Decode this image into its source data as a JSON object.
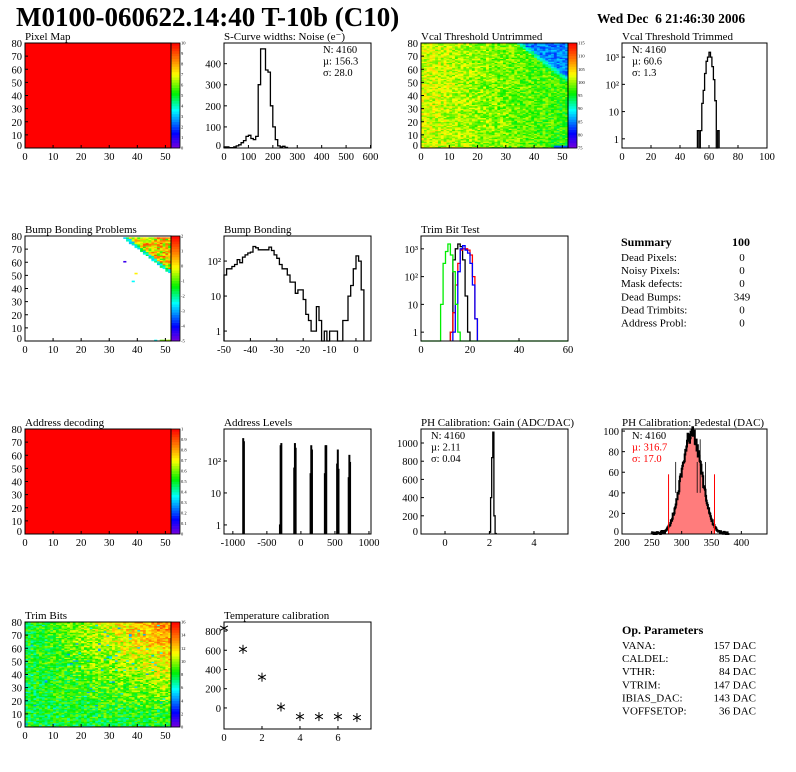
{
  "header": {
    "title": "M0100-060622.14:40 T-10b (C10)",
    "date": "Wed Dec  6 21:46:30 2006"
  },
  "summary": {
    "title": "Summary",
    "total": "100",
    "rows": [
      {
        "label": "Dead Pixels:",
        "value": "0"
      },
      {
        "label": "Noisy Pixels:",
        "value": "0"
      },
      {
        "label": "Mask defects:",
        "value": "0"
      },
      {
        "label": "Dead Bumps:",
        "value": "349"
      },
      {
        "label": "Dead Trimbits:",
        "value": "0"
      },
      {
        "label": "Address Probl:",
        "value": "0"
      }
    ]
  },
  "op_parameters": {
    "title": "Op. Parameters",
    "rows": [
      {
        "label": "VANA:",
        "value": "157 DAC"
      },
      {
        "label": "CALDEL:",
        "value": "85 DAC"
      },
      {
        "label": "VTHR:",
        "value": "84 DAC"
      },
      {
        "label": "VTRIM:",
        "value": "147 DAC"
      },
      {
        "label": "IBIAS_DAC:",
        "value": "143 DAC"
      },
      {
        "label": "VOFFSETOP:",
        "value": "36 DAC"
      }
    ]
  },
  "colors": {
    "black": "#000000",
    "red": "#ff0000",
    "blue": "#0000ff",
    "green": "#00ee00"
  },
  "chart_data": [
    {
      "id": "pixelmap",
      "type": "heatmap",
      "title": "Pixel Map",
      "xlim": [
        0,
        52
      ],
      "ylim": [
        0,
        80
      ],
      "xticks": [
        "0",
        "10",
        "20",
        "30",
        "40",
        "50"
      ],
      "yticks": [
        "0",
        "10",
        "20",
        "30",
        "40",
        "50",
        "60",
        "70",
        "80"
      ],
      "zlim": [
        0,
        10
      ],
      "palette_ticks": [
        "0",
        "1",
        "2",
        "3",
        "4",
        "5",
        "6",
        "7",
        "8",
        "9",
        "10"
      ],
      "pattern": "uniform",
      "fill_value": 10
    },
    {
      "id": "scurve",
      "type": "bar",
      "title": "S-Curve widths: Noise (e⁻)",
      "xlim": [
        0,
        602
      ],
      "ylim": [
        0,
        498
      ],
      "xticks": [
        "0",
        "100",
        "200",
        "300",
        "400",
        "500",
        "600"
      ],
      "yticks": [
        "0",
        "100",
        "200",
        "300",
        "400"
      ],
      "stats": [
        "N: 4160",
        "µ: 156.3",
        "σ: 28.0"
      ],
      "series": [
        {
          "name": "noise",
          "color": "#000000",
          "start": 0,
          "width": 10,
          "values": [
            5,
            5,
            2,
            2,
            5,
            10,
            15,
            25,
            35,
            55,
            60,
            45,
            40,
            55,
            300,
            470,
            470,
            370,
            360,
            200,
            100,
            40,
            10,
            5,
            8,
            3
          ]
        }
      ]
    },
    {
      "id": "vcalU",
      "type": "heatmap",
      "title": "Vcal Threshold Untrimmed",
      "xlim": [
        0,
        52
      ],
      "ylim": [
        0,
        80
      ],
      "xticks": [
        "0",
        "10",
        "20",
        "30",
        "40",
        "50"
      ],
      "yticks": [
        "0",
        "10",
        "20",
        "30",
        "40",
        "50",
        "60",
        "70",
        "80"
      ],
      "zlim": [
        72,
        118
      ],
      "palette_ticks": [
        "75",
        "80",
        "85",
        "90",
        "95",
        "100",
        "105",
        "110",
        "115"
      ],
      "pattern": "vcal"
    },
    {
      "id": "vcalT",
      "type": "bar",
      "title": "Vcal Threshold Trimmed",
      "xlim": [
        0,
        100
      ],
      "ylim": [
        0.46,
        3300
      ],
      "logy": true,
      "xticks": [
        "0",
        "20",
        "40",
        "60",
        "80",
        "100"
      ],
      "yticks": [
        "1",
        "10",
        "10²",
        "10³"
      ],
      "ytick_values": [
        1,
        10,
        100,
        1000
      ],
      "stats": [
        "N: 4160",
        "µ: 60.6",
        "σ:  1.3"
      ],
      "series": [
        {
          "name": "vcal",
          "color": "#000000",
          "start": 52,
          "width": 1,
          "values": [
            2,
            0,
            2,
            20,
            60,
            250,
            700,
            1000,
            1500,
            1000,
            450,
            150,
            25,
            0,
            2
          ]
        }
      ]
    },
    {
      "id": "bumpmap",
      "type": "heatmap",
      "title": "Bump Bonding Problems",
      "xlim": [
        0,
        52
      ],
      "ylim": [
        0,
        80
      ],
      "xticks": [
        "0",
        "10",
        "20",
        "30",
        "40",
        "50"
      ],
      "yticks": [
        "0",
        "10",
        "20",
        "30",
        "40",
        "50",
        "60",
        "70",
        "80"
      ],
      "zlim": [
        -5,
        2
      ],
      "palette_ticks": [
        "-5",
        "-4",
        "-3",
        "-2",
        "-1",
        "0",
        "1",
        "2"
      ],
      "pattern": "bump"
    },
    {
      "id": "bump",
      "type": "bar",
      "title": "Bump Bonding",
      "xlim": [
        -50,
        5.7
      ],
      "ylim": [
        0.52,
        520
      ],
      "logy": true,
      "xticks": [
        "-50",
        "-40",
        "-30",
        "-20",
        "-10",
        "0"
      ],
      "yticks": [
        "1",
        "10",
        "10²"
      ],
      "ytick_values": [
        1,
        10,
        100
      ],
      "series": [
        {
          "name": "bump",
          "color": "#000000",
          "start": -50,
          "width": 1,
          "values": [
            40,
            60,
            60,
            70,
            80,
            110,
            90,
            130,
            150,
            170,
            180,
            260,
            240,
            210,
            210,
            210,
            210,
            250,
            200,
            150,
            120,
            80,
            60,
            60,
            40,
            25,
            25,
            12,
            15,
            15,
            8,
            3,
            2,
            1,
            1,
            5,
            2,
            0,
            1,
            0,
            1,
            1,
            1,
            0,
            0,
            2,
            2,
            10,
            20,
            60,
            140,
            100,
            15
          ]
        }
      ]
    },
    {
      "id": "trim",
      "type": "bar",
      "title": "Trim Bit Test",
      "xlim": [
        0,
        60
      ],
      "ylim": [
        0.48,
        2900
      ],
      "logy": true,
      "xticks": [
        "0",
        "20",
        "40",
        "60"
      ],
      "yticks": [
        "1",
        "10",
        "10²",
        "10³"
      ],
      "ytick_values": [
        1,
        10,
        100,
        1000
      ],
      "series": [
        {
          "name": "trim-bit-0",
          "color": "#000000",
          "start": 12,
          "width": 1,
          "values": [
            1,
            400,
            1000,
            1500,
            1200,
            400,
            20,
            1
          ]
        },
        {
          "name": "trim-bit-1",
          "color": "#ff0000",
          "start": 12,
          "width": 1,
          "values": [
            1,
            5,
            50,
            300,
            900,
            1000,
            1000,
            900,
            600,
            100,
            3
          ]
        },
        {
          "name": "trim-bit-2",
          "color": "#0000ff",
          "start": 13,
          "width": 1,
          "values": [
            1,
            10,
            150,
            1000,
            1300,
            900,
            700,
            300,
            50,
            3
          ]
        },
        {
          "name": "trim-bit-3",
          "color": "#00ee00",
          "start": 8,
          "width": 1,
          "values": [
            10,
            300,
            800,
            1500,
            600,
            150,
            10,
            1
          ]
        }
      ]
    },
    {
      "id": "addrmap",
      "type": "heatmap",
      "title": "Address decoding",
      "xlim": [
        0,
        52
      ],
      "ylim": [
        0,
        80
      ],
      "xticks": [
        "0",
        "10",
        "20",
        "30",
        "40",
        "50"
      ],
      "yticks": [
        "0",
        "10",
        "20",
        "30",
        "40",
        "50",
        "60",
        "70",
        "80"
      ],
      "zlim": [
        0,
        1
      ],
      "palette_ticks": [
        "0",
        "0.1",
        "0.2",
        "0.3",
        "0.4",
        "0.5",
        "0.6",
        "0.7",
        "0.8",
        "0.9",
        "1"
      ],
      "pattern": "uniform",
      "fill_value": 1
    },
    {
      "id": "addrlev",
      "type": "bar",
      "title": "Address Levels",
      "xlim": [
        -1130,
        1030
      ],
      "ylim": [
        0.52,
        1000
      ],
      "logy": true,
      "xticks": [
        "-1000",
        "-500",
        "0",
        "500",
        "1000"
      ],
      "yticks": [
        "1",
        "10",
        "10²"
      ],
      "ytick_values": [
        1,
        10,
        100
      ],
      "series": [
        {
          "name": "address-levels",
          "color": "#000000",
          "width": 10,
          "points": [
            [
              -850,
              500
            ],
            [
              -840,
              400
            ],
            [
              -310,
              1
            ],
            [
              -300,
              300
            ],
            [
              -290,
              350
            ],
            [
              -100,
              60
            ],
            [
              -90,
              350
            ],
            [
              -80,
              250
            ],
            [
              140,
              40
            ],
            [
              150,
              300
            ],
            [
              160,
              220
            ],
            [
              350,
              40
            ],
            [
              360,
              300
            ],
            [
              370,
              300
            ],
            [
              530,
              80
            ],
            [
              540,
              220
            ],
            [
              550,
              55
            ],
            [
              700,
              30
            ],
            [
              710,
              150
            ],
            [
              720,
              90
            ]
          ]
        }
      ]
    },
    {
      "id": "gain",
      "type": "bar",
      "title": "PH Calibration: Gain (ADC/DAC)",
      "xlim": [
        -1.08,
        5.53
      ],
      "ylim": [
        0,
        1154
      ],
      "xticks": [
        "0",
        "2",
        "4"
      ],
      "yticks": [
        "0",
        "200",
        "400",
        "600",
        "800",
        "1000"
      ],
      "stats": [
        "N: 4160",
        "µ: 2.11",
        "σ: 0.04"
      ],
      "series": [
        {
          "name": "gain",
          "color": "#000000",
          "start": 2.0,
          "width": 0.05,
          "values": [
            20,
            400,
            840,
            1120,
            200,
            5
          ]
        }
      ]
    },
    {
      "id": "ped",
      "type": "bar",
      "title": "PH Calibration: Pedestal (DAC)",
      "xlim": [
        200,
        443
      ],
      "ylim": [
        0,
        102
      ],
      "xticks": [
        "200",
        "250",
        "300",
        "350",
        "400"
      ],
      "yticks": [
        "0",
        "20",
        "40",
        "60",
        "80",
        "100"
      ],
      "stats": [
        "N: 4160",
        "µ: 316.7",
        "σ: 17.0"
      ],
      "stats_colors": [
        "#000000",
        "#ff0000",
        "#ff0000"
      ],
      "gaussian": {
        "n": 4160,
        "mean": 316.7,
        "sigma": 17.0,
        "bin_width": 1,
        "range": [
          250,
          380
        ],
        "fit_range": [
          278,
          355
        ]
      }
    },
    {
      "id": "trimbits",
      "type": "heatmap",
      "title": "Trim Bits",
      "xlim": [
        0,
        52
      ],
      "ylim": [
        0,
        80
      ],
      "xticks": [
        "0",
        "10",
        "20",
        "30",
        "40",
        "50"
      ],
      "yticks": [
        "0",
        "10",
        "20",
        "30",
        "40",
        "50",
        "60",
        "70",
        "80"
      ],
      "zlim": [
        0,
        16
      ],
      "palette_ticks": [
        "0",
        "2",
        "4",
        "6",
        "8",
        "10",
        "12",
        "14",
        "16"
      ],
      "pattern": "trimbits"
    },
    {
      "id": "temp",
      "type": "scatter",
      "title": "Temperature calibration",
      "xlim": [
        0,
        7.74
      ],
      "ylim": [
        -219,
        894
      ],
      "xticks": [
        "0",
        "2",
        "4",
        "6"
      ],
      "yticks": [
        "0",
        "200",
        "400",
        "600",
        "800"
      ],
      "x": [
        0,
        1,
        2,
        3,
        4,
        5,
        6,
        7
      ],
      "y": [
        830,
        610,
        320,
        10,
        -90,
        -90,
        -90,
        -100
      ]
    }
  ]
}
